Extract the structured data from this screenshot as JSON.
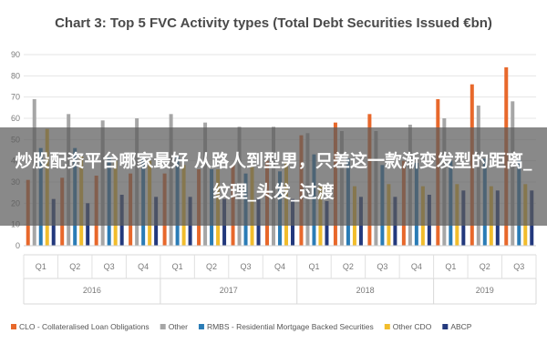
{
  "chart_data": {
    "type": "bar",
    "title": "Chart 3: Top 5 FVC Activity types (Total Debt Securities Issued €bn)",
    "categories": [
      "Q1",
      "Q2",
      "Q3",
      "Q4",
      "Q1",
      "Q2",
      "Q3",
      "Q4",
      "Q1",
      "Q2",
      "Q3",
      "Q4",
      "Q1",
      "Q2",
      "Q3"
    ],
    "years": [
      {
        "label": "2016",
        "span": 4
      },
      {
        "label": "2017",
        "span": 4
      },
      {
        "label": "2018",
        "span": 4
      },
      {
        "label": "2019",
        "span": 3
      }
    ],
    "ylim": [
      0,
      90
    ],
    "yticks": [
      "0",
      "10",
      "20",
      "30",
      "40",
      "50",
      "60",
      "70",
      "80",
      "90"
    ],
    "grid": true,
    "legend_position": "bottom",
    "series": [
      {
        "name": "CLO - Collateralised Loan Obligations",
        "color": "#e8682b",
        "values": [
          31,
          32,
          33,
          34,
          34,
          36,
          38,
          40,
          52,
          58,
          62,
          40,
          69,
          76,
          84
        ]
      },
      {
        "name": "Other",
        "color": "#a6a6a6",
        "values": [
          69,
          62,
          59,
          60,
          62,
          58,
          56,
          56,
          53,
          54,
          54,
          57,
          60,
          66,
          68
        ]
      },
      {
        "name": "RMBS - Residential Mortgage Backed Securities",
        "color": "#2a7cb6",
        "values": [
          46,
          46,
          42,
          42,
          42,
          36,
          34,
          35,
          43,
          41,
          38,
          39,
          40,
          41,
          41
        ]
      },
      {
        "name": "Other CDO",
        "color": "#f2bd2c",
        "values": [
          55,
          42,
          40,
          40,
          38,
          36,
          37,
          39,
          28,
          28,
          29,
          28,
          29,
          28,
          29
        ]
      },
      {
        "name": "ABCP",
        "color": "#23397d",
        "values": [
          22,
          20,
          24,
          23,
          23,
          22,
          22,
          22,
          21,
          23,
          23,
          24,
          26,
          26,
          26
        ]
      }
    ]
  },
  "overlay": {
    "text": "炒股配资平台哪家最好 从路人到型男，只差这一款渐变发型的距离_纹理_头发_过渡"
  }
}
